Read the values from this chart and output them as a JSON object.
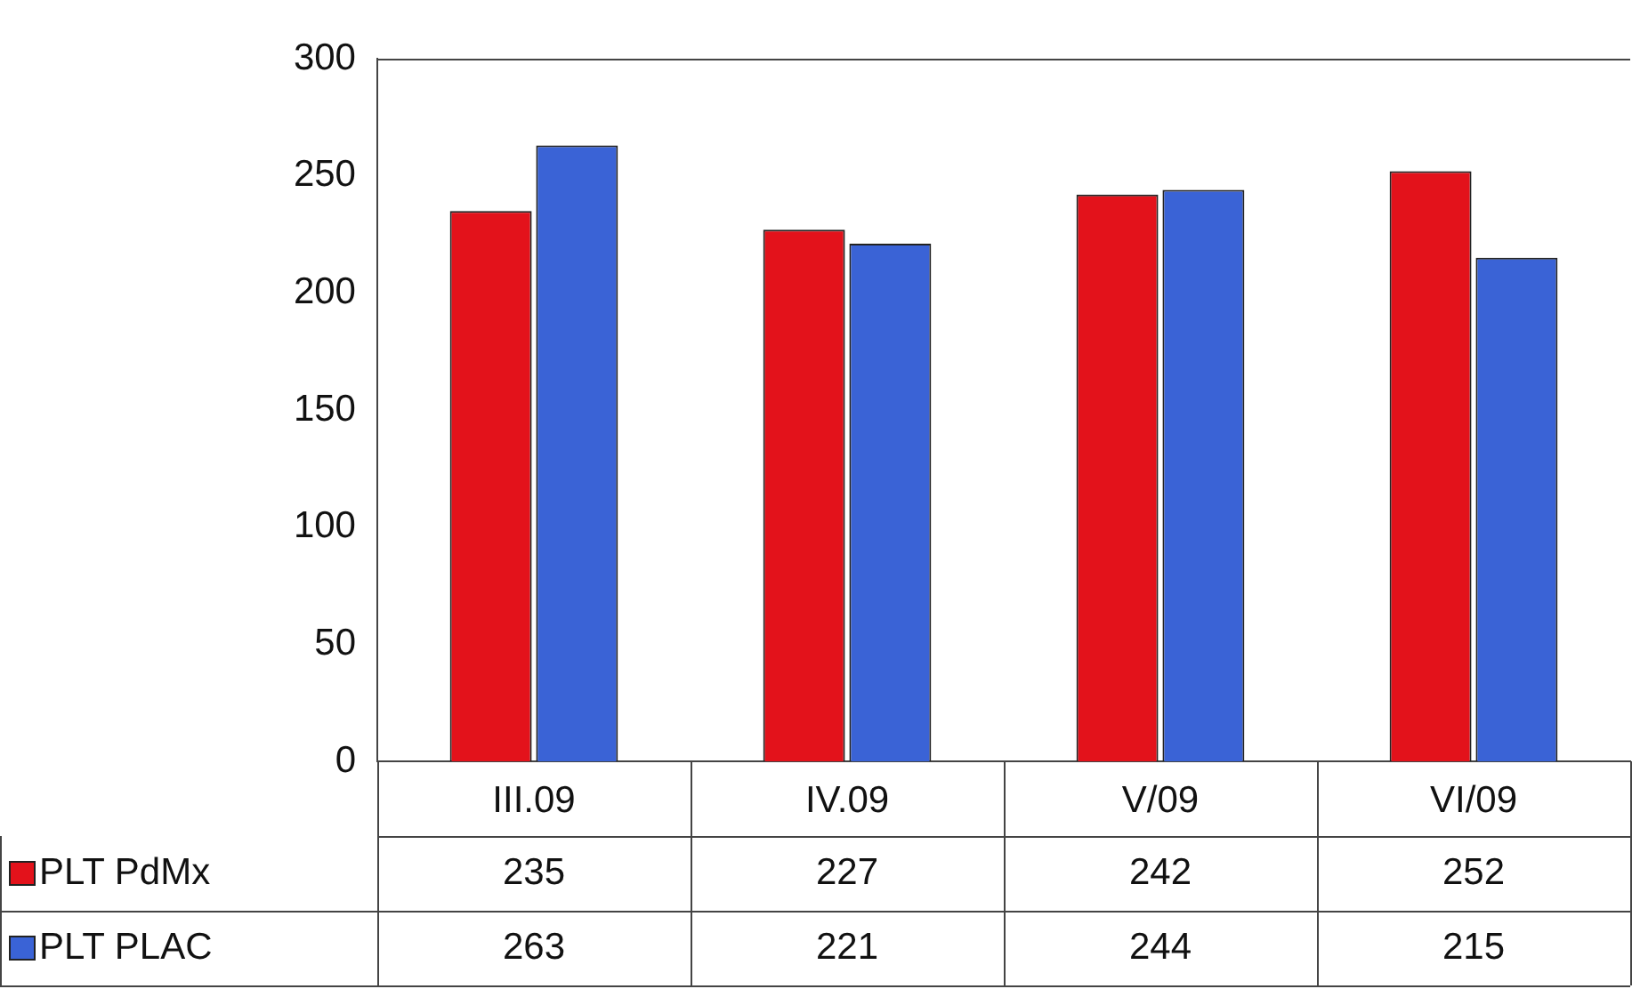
{
  "chart_data": {
    "type": "bar",
    "categories": [
      "III.09",
      "IV.09",
      "V/09",
      "VI/09"
    ],
    "series": [
      {
        "name": "PLT PdMx",
        "color": "#e3121b",
        "values": [
          235,
          227,
          242,
          252
        ]
      },
      {
        "name": "PLT PLAC",
        "color": "#3a63d6",
        "values": [
          263,
          221,
          244,
          215
        ]
      }
    ],
    "ylim": [
      0,
      300
    ],
    "yticks": [
      0,
      50,
      100,
      150,
      200,
      250,
      300
    ],
    "grid": false,
    "legend": "bottom left",
    "data_labels": true
  }
}
